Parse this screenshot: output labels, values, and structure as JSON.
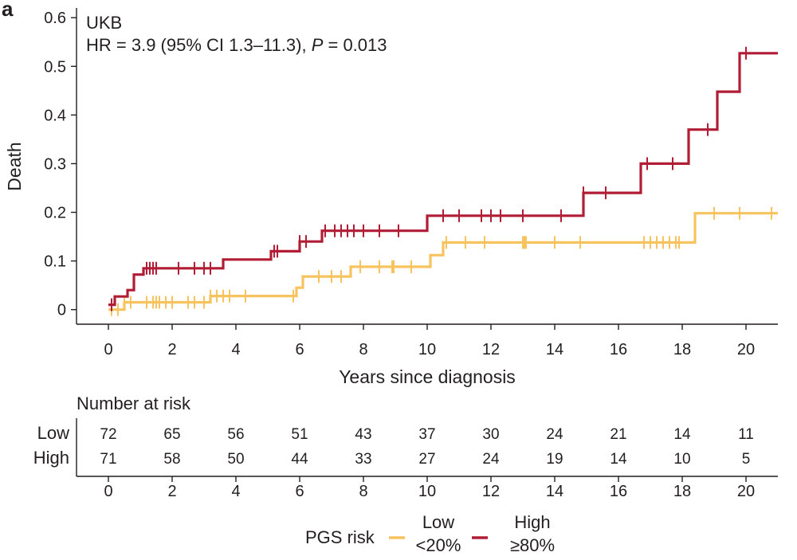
{
  "chart_data": {
    "type": "line",
    "subtype": "kaplan-meier",
    "panel_label": "a",
    "annotation": {
      "cohort": "UKB",
      "hr_prefix": "HR = 3.9 (95% CI 1.3–11.3), ",
      "p_symbol": "P",
      "p_suffix": " = 0.013"
    },
    "xlabel": "Years since diagnosis",
    "ylabel": "Death",
    "xlim": [
      -1,
      21
    ],
    "ylim": [
      -0.03,
      0.62
    ],
    "xticks": [
      0,
      2,
      4,
      6,
      8,
      10,
      12,
      14,
      16,
      18,
      20
    ],
    "xtick_labels": [
      "0",
      "2",
      "4",
      "6",
      "8",
      "10",
      "12",
      "14",
      "16",
      "18",
      "20"
    ],
    "yticks": [
      0,
      0.1,
      0.2,
      0.3,
      0.4,
      0.5,
      0.6
    ],
    "ytick_labels": [
      "0",
      "0.1",
      "0.2",
      "0.3",
      "0.4",
      "0.5",
      "0.6"
    ],
    "colors": {
      "low": "#f7c35f",
      "high": "#b11d35",
      "axis": "#231f20"
    },
    "series": [
      {
        "key": "low",
        "name": "Low <20%",
        "color": "#f7c35f",
        "steps": [
          [
            0,
            0
          ],
          [
            0.5,
            0.015
          ],
          [
            3.2,
            0.028
          ],
          [
            5.9,
            0.045
          ],
          [
            6.1,
            0.068
          ],
          [
            7.6,
            0.088
          ],
          [
            10.1,
            0.112
          ],
          [
            10.5,
            0.138
          ],
          [
            18.4,
            0.198
          ],
          [
            21,
            0.198
          ]
        ],
        "censor": [
          0.1,
          0.3,
          0.5,
          0.7,
          1.2,
          1.4,
          1.5,
          1.6,
          1.8,
          2.0,
          2.5,
          2.7,
          3.0,
          3.2,
          3.4,
          3.6,
          3.8,
          4.3,
          5.8,
          6.6,
          7.0,
          7.3,
          7.9,
          8.5,
          8.9,
          8.95,
          9.5,
          10.6,
          11.2,
          11.8,
          13.0,
          13.05,
          13.1,
          14.0,
          14.8,
          16.8,
          17.0,
          17.2,
          17.4,
          17.6,
          17.8,
          17.9,
          19.0,
          19.8,
          20.8
        ]
      },
      {
        "key": "high",
        "name": "High ≥80%",
        "color": "#b11d35",
        "steps": [
          [
            0,
            0.01
          ],
          [
            0.2,
            0.027
          ],
          [
            0.6,
            0.04
          ],
          [
            0.8,
            0.072
          ],
          [
            1.1,
            0.085
          ],
          [
            3.6,
            0.103
          ],
          [
            5.1,
            0.12
          ],
          [
            6.0,
            0.14
          ],
          [
            6.7,
            0.162
          ],
          [
            10.0,
            0.193
          ],
          [
            14.9,
            0.24
          ],
          [
            16.7,
            0.3
          ],
          [
            18.2,
            0.37
          ],
          [
            19.1,
            0.448
          ],
          [
            19.8,
            0.527
          ],
          [
            21,
            0.527
          ]
        ],
        "censor": [
          0.1,
          1.2,
          1.3,
          1.4,
          1.5,
          2.2,
          2.7,
          3.0,
          3.2,
          5.2,
          5.3,
          6.0,
          6.2,
          6.8,
          7.1,
          7.3,
          7.5,
          7.7,
          8.0,
          8.5,
          9.1,
          10.5,
          11.0,
          11.7,
          12.0,
          12.3,
          13.0,
          14.2,
          14.9,
          15.6,
          16.9,
          17.7,
          18.8,
          20.0
        ]
      }
    ],
    "risk_table": {
      "title": "Number at risk",
      "times": [
        "0",
        "2",
        "4",
        "6",
        "8",
        "10",
        "12",
        "14",
        "16",
        "18",
        "20"
      ],
      "rows": [
        {
          "label": "Low",
          "values": [
            "72",
            "65",
            "56",
            "51",
            "43",
            "37",
            "30",
            "24",
            "21",
            "14",
            "11"
          ]
        },
        {
          "label": "High",
          "values": [
            "71",
            "58",
            "50",
            "44",
            "33",
            "27",
            "24",
            "19",
            "14",
            "10",
            "5"
          ]
        }
      ]
    },
    "legend": {
      "title": "PGS risk",
      "items": [
        {
          "key": "low",
          "line1": "Low",
          "line2": "<20%"
        },
        {
          "key": "high",
          "line1": "High",
          "line2": "≥80%"
        }
      ]
    }
  }
}
